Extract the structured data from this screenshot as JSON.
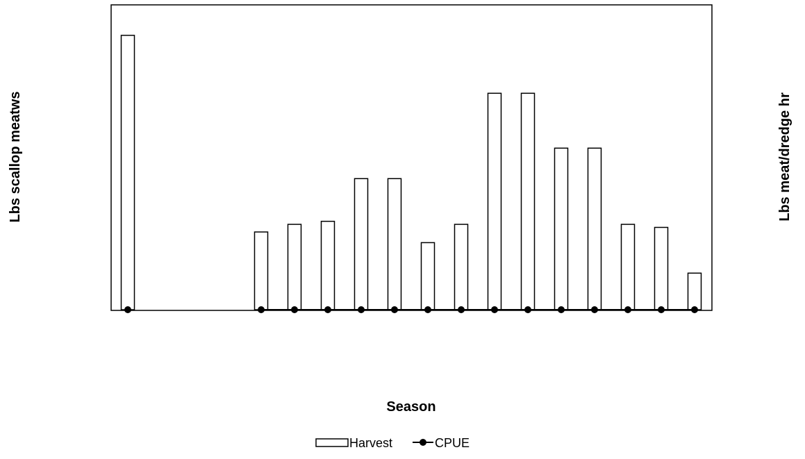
{
  "chart_data": {
    "type": "bar",
    "title": "",
    "xlabel": "Season",
    "ylabel": "Lbs scallop meatws",
    "y2label": "Lbs meat/dredge hr",
    "grid": false,
    "legend_position": "bottom",
    "tick_labels_visible": false,
    "ylim": [
      0,
      100
    ],
    "y2lim": [
      0,
      100
    ],
    "x": [
      1,
      2,
      3,
      4,
      5,
      6,
      7,
      8,
      9,
      10,
      11,
      12,
      13,
      14,
      15,
      16,
      17,
      18
    ],
    "series": [
      {
        "name": "Harvest",
        "kind": "bar",
        "axis": "left",
        "values": [
          90,
          null,
          null,
          null,
          25.5,
          28,
          29,
          43,
          43,
          22,
          28,
          71,
          71,
          53,
          53,
          28,
          27,
          12
        ]
      },
      {
        "name": "CPUE",
        "kind": "line",
        "axis": "right",
        "marker": "circle",
        "values": [
          0,
          null,
          null,
          null,
          0,
          0,
          0,
          0,
          0,
          0,
          0,
          0,
          0,
          0,
          0,
          0,
          0,
          0
        ]
      }
    ]
  }
}
